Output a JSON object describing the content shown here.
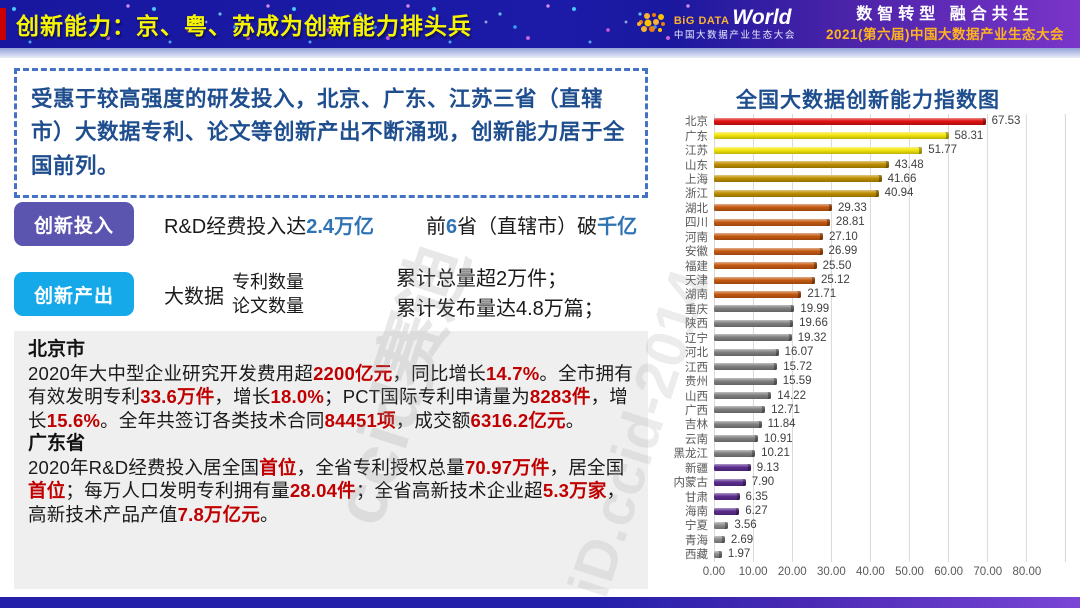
{
  "header": {
    "title": "创新能力：京、粤、苏成为创新能力排头兵",
    "logo": {
      "big": "BiG DATA",
      "world": "World",
      "sub": "中国大数据产业生态大会"
    },
    "slogan": "数智转型 融合共生",
    "event": "2021(第六届)中国大数据产业生态大会"
  },
  "intro": "受惠于较高强度的研发投入，北京、广东、江苏三省（直辖市）大数据专利、论文等创新产出不断涌现，创新能力居于全国前列。",
  "input_row": {
    "badge": "创新投入",
    "stat1": [
      {
        "t": "R&D经费投入达"
      },
      {
        "t": "2.4万亿",
        "c": "blue"
      }
    ],
    "stat2": [
      {
        "t": "前"
      },
      {
        "t": "6",
        "c": "blue"
      },
      {
        "t": "省（直辖市）破"
      },
      {
        "t": "千亿",
        "c": "blue"
      }
    ]
  },
  "output_row": {
    "badge": "创新产出",
    "label": "大数据",
    "stack": [
      "专利数量",
      "论文数量"
    ],
    "results": [
      "累计总量超2万件；",
      "累计发布量达4.8万篇；"
    ]
  },
  "detail": {
    "beijing_title": "北京市",
    "beijing": [
      {
        "t": "2020年大中型企业研究开发费用超"
      },
      {
        "t": "2200亿元",
        "c": "red"
      },
      {
        "t": "，同比增长"
      },
      {
        "t": "14.7%",
        "c": "red"
      },
      {
        "t": "。全市拥有有效发明专利"
      },
      {
        "t": "33.6万件",
        "c": "red"
      },
      {
        "t": "，增长"
      },
      {
        "t": "18.0%",
        "c": "red"
      },
      {
        "t": "；PCT国际专利申请量为"
      },
      {
        "t": "8283件",
        "c": "red"
      },
      {
        "t": "，增长"
      },
      {
        "t": "15.6%",
        "c": "red"
      },
      {
        "t": "。全年共签订各类技术合同"
      },
      {
        "t": "84451项",
        "c": "red"
      },
      {
        "t": "，成交额"
      },
      {
        "t": "6316.2亿元",
        "c": "red"
      },
      {
        "t": "。"
      }
    ],
    "guangdong_title": "广东省",
    "guangdong": [
      {
        "t": "2020年R&D经费投入居全国"
      },
      {
        "t": "首位",
        "c": "red"
      },
      {
        "t": "，全省专利授权总量"
      },
      {
        "t": "70.97万件",
        "c": "red"
      },
      {
        "t": "，居全国"
      },
      {
        "t": "首位",
        "c": "red"
      },
      {
        "t": "；每万人口发明专利拥有量"
      },
      {
        "t": "28.04件",
        "c": "red"
      },
      {
        "t": "；全省高新技术企业超"
      },
      {
        "t": "5.3万家",
        "c": "red"
      },
      {
        "t": "，高新技术产品产值"
      },
      {
        "t": "7.8万亿元",
        "c": "red"
      },
      {
        "t": "。"
      }
    ]
  },
  "chart_data": {
    "type": "bar",
    "orientation": "horizontal",
    "title": "全国大数据创新能力指数图",
    "categories": [
      "北京",
      "广东",
      "江苏",
      "山东",
      "上海",
      "浙江",
      "湖北",
      "四川",
      "河南",
      "安徽",
      "福建",
      "天津",
      "湖南",
      "重庆",
      "陕西",
      "辽宁",
      "河北",
      "江西",
      "贵州",
      "山西",
      "广西",
      "吉林",
      "云南",
      "黑龙江",
      "新疆",
      "内蒙古",
      "甘肃",
      "海南",
      "宁夏",
      "青海",
      "西藏"
    ],
    "values": [
      67.53,
      58.31,
      51.77,
      43.48,
      41.66,
      40.94,
      29.33,
      28.81,
      27.1,
      26.99,
      25.5,
      25.12,
      21.71,
      19.99,
      19.66,
      19.32,
      16.07,
      15.72,
      15.59,
      14.22,
      12.71,
      11.84,
      10.91,
      10.21,
      9.13,
      7.9,
      6.35,
      6.27,
      3.56,
      2.69,
      1.97
    ],
    "colors": [
      "#E01212",
      "#F2E50B",
      "#F2E50B",
      "#BF8F00",
      "#BF8F00",
      "#BF8F00",
      "#C55A11",
      "#C55A11",
      "#C55A11",
      "#C55A11",
      "#C55A11",
      "#C55A11",
      "#C55A11",
      "#7F7F7F",
      "#7F7F7F",
      "#7F7F7F",
      "#7F7F7F",
      "#7F7F7F",
      "#7F7F7F",
      "#7F7F7F",
      "#7F7F7F",
      "#7F7F7F",
      "#7F7F7F",
      "#7F7F7F",
      "#5B2D8E",
      "#5B2D8E",
      "#5B2D8E",
      "#5B2D8E",
      "#8C8C8C",
      "#8C8C8C",
      "#8C8C8C"
    ],
    "xlim": [
      0,
      90
    ],
    "x_ticks": [
      "0.00",
      "10.00",
      "20.00",
      "30.00",
      "40.00",
      "50.00",
      "60.00",
      "70.00",
      "80.00"
    ],
    "grid": true,
    "legend": false,
    "value_labels": true
  },
  "watermarks": [
    "ccid赛迪",
    "iD.ccid-2014"
  ]
}
